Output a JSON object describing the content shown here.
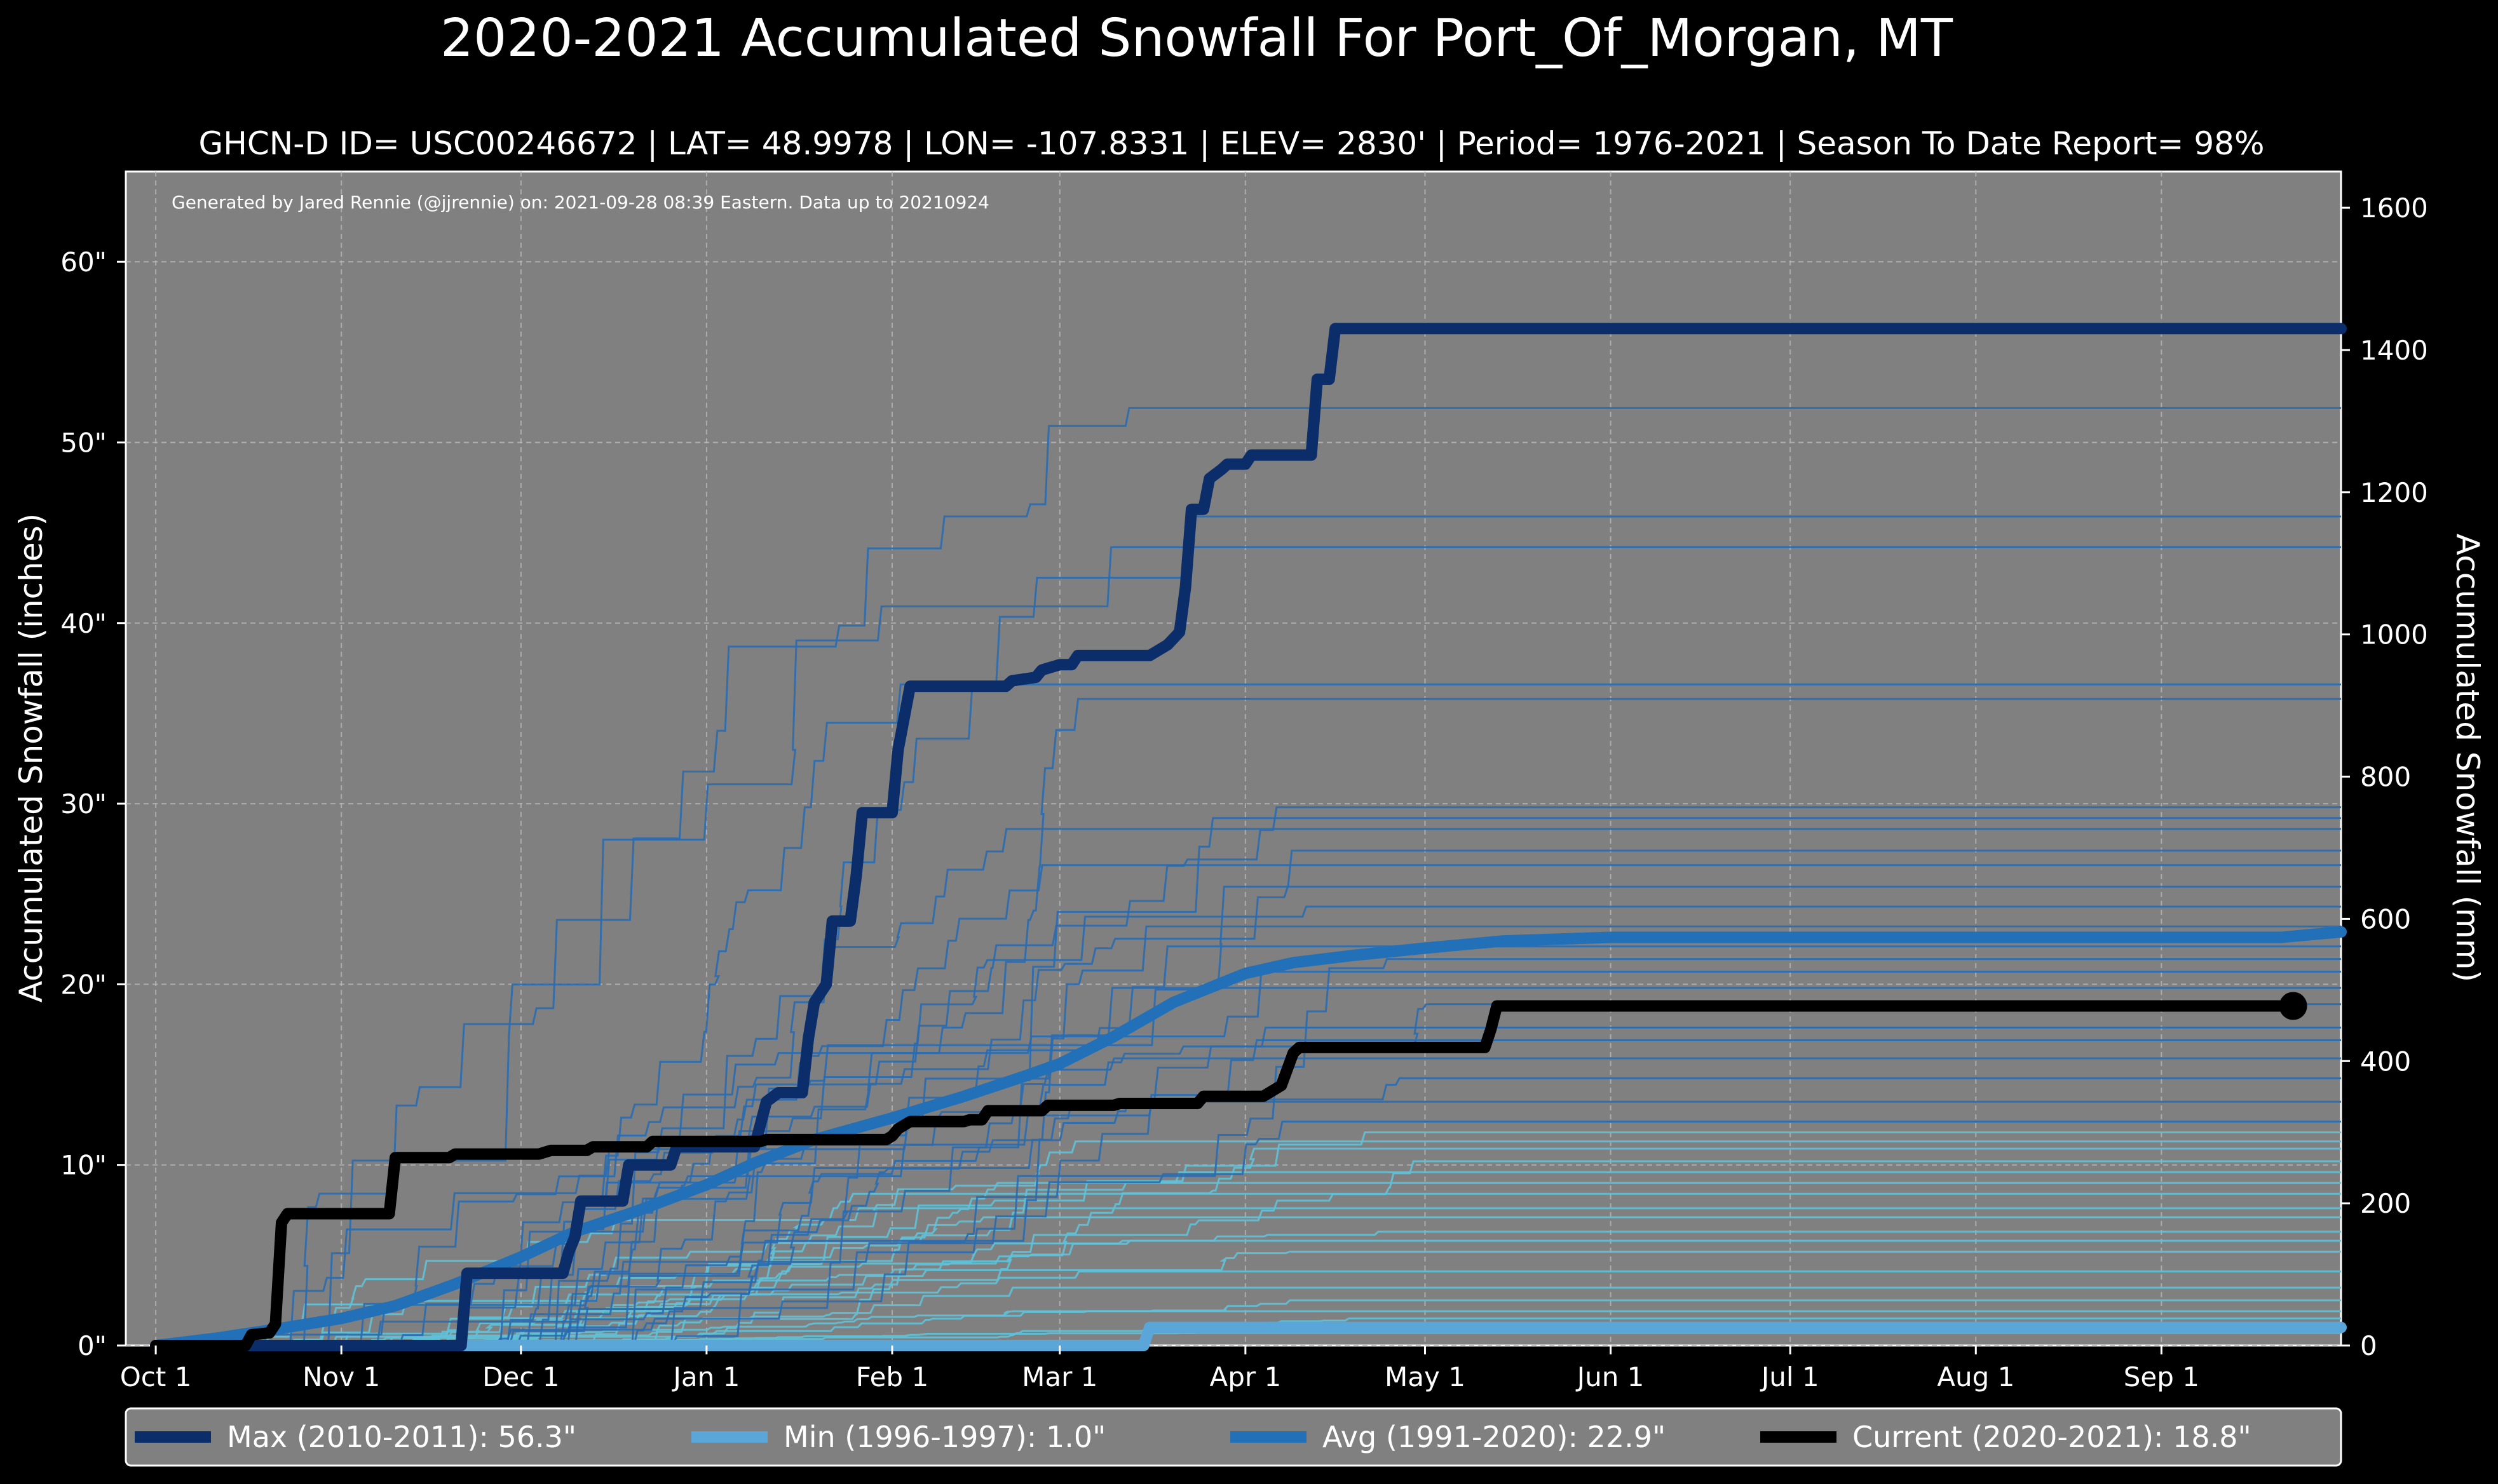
{
  "chart_data": {
    "type": "line",
    "title": "2020-2021 Accumulated Snowfall For Port_Of_Morgan, MT",
    "subtitle": "GHCN-D ID= USC00246672 | LAT= 48.9978 | LON= -107.8331 | ELEV= 2830' | Period= 1976-2021 | Season To Date Report= 98%",
    "annotation": "Generated by Jared Rennie (@jjrennie) on: 2021-09-28 08:39 Eastern. Data up to 20210924",
    "ylabel_left": "Accumulated Snowfall (inches)",
    "ylabel_right": "Accumulated Snowfall (mm)",
    "x_range_days": [
      -5,
      365
    ],
    "ylim_inches": [
      0,
      65
    ],
    "ylim_mm": [
      0,
      1651
    ],
    "grid": true,
    "x_ticks": [
      {
        "label": "Oct 1",
        "day": 0
      },
      {
        "label": "Nov 1",
        "day": 31
      },
      {
        "label": "Dec 1",
        "day": 61
      },
      {
        "label": "Jan 1",
        "day": 92
      },
      {
        "label": "Feb 1",
        "day": 123
      },
      {
        "label": "Mar 1",
        "day": 151
      },
      {
        "label": "Apr 1",
        "day": 182
      },
      {
        "label": "May 1",
        "day": 212
      },
      {
        "label": "Jun 1",
        "day": 243
      },
      {
        "label": "Jul 1",
        "day": 273
      },
      {
        "label": "Aug 1",
        "day": 304
      },
      {
        "label": "Sep 1",
        "day": 335
      }
    ],
    "y_ticks_left": [
      {
        "label": "0\"",
        "value": 0
      },
      {
        "label": "10\"",
        "value": 10
      },
      {
        "label": "20\"",
        "value": 20
      },
      {
        "label": "30\"",
        "value": 30
      },
      {
        "label": "40\"",
        "value": 40
      },
      {
        "label": "50\"",
        "value": 50
      },
      {
        "label": "60\"",
        "value": 60
      }
    ],
    "y_ticks_right": [
      {
        "label": "0",
        "value": 0
      },
      {
        "label": "200",
        "value": 200
      },
      {
        "label": "400",
        "value": 400
      },
      {
        "label": "600",
        "value": 600
      },
      {
        "label": "800",
        "value": 800
      },
      {
        "label": "1000",
        "value": 1000
      },
      {
        "label": "1200",
        "value": 1200
      },
      {
        "label": "1400",
        "value": 1400
      },
      {
        "label": "1600",
        "value": 1600
      }
    ],
    "series": [
      {
        "name": "Max (2010-2011)",
        "legend": "Max (2010-2011):   56.3\"",
        "color": "#0b2e6b",
        "points": [
          [
            0,
            0
          ],
          [
            51,
            0
          ],
          [
            52,
            4
          ],
          [
            68,
            4
          ],
          [
            69,
            5.2
          ],
          [
            70,
            6
          ],
          [
            71,
            8
          ],
          [
            78,
            8
          ],
          [
            79,
            10
          ],
          [
            86,
            10
          ],
          [
            87,
            11
          ],
          [
            94,
            11
          ],
          [
            100,
            11
          ],
          [
            102,
            13.5
          ],
          [
            104,
            14
          ],
          [
            108,
            14
          ],
          [
            109,
            17
          ],
          [
            110,
            19
          ],
          [
            112,
            20
          ],
          [
            113,
            23.5
          ],
          [
            116,
            23.5
          ],
          [
            117,
            26
          ],
          [
            118,
            29.5
          ],
          [
            123,
            29.5
          ],
          [
            124,
            33
          ],
          [
            126,
            36.5
          ],
          [
            142,
            36.5
          ],
          [
            143,
            36.8
          ],
          [
            147,
            37
          ],
          [
            148,
            37.4
          ],
          [
            151,
            37.7
          ],
          [
            153,
            37.7
          ],
          [
            154,
            38.2
          ],
          [
            166,
            38.2
          ],
          [
            167,
            38.4
          ],
          [
            169,
            38.8
          ],
          [
            171,
            39.5
          ],
          [
            172,
            42
          ],
          [
            173,
            46.3
          ],
          [
            175,
            46.3
          ],
          [
            176,
            48
          ],
          [
            178,
            48.5
          ],
          [
            179,
            48.8
          ],
          [
            182,
            48.8
          ],
          [
            183,
            49.3
          ],
          [
            193,
            49.3
          ],
          [
            194,
            53.5
          ],
          [
            196,
            53.5
          ],
          [
            197,
            56.3
          ],
          [
            365,
            56.3
          ]
        ]
      },
      {
        "name": "Min (1996-1997)",
        "legend": "Min (1996-1997):    1.0\"",
        "color": "#5aa6d8",
        "points": [
          [
            0,
            0
          ],
          [
            165,
            0
          ],
          [
            166,
            1
          ],
          [
            365,
            1
          ]
        ]
      },
      {
        "name": "Avg (1991-2020)",
        "legend": "Avg (1991-2020):   22.9\"",
        "color": "#2170b8",
        "points": [
          [
            0,
            0
          ],
          [
            10,
            0.4
          ],
          [
            20,
            0.9
          ],
          [
            31,
            1.5
          ],
          [
            40,
            2.2
          ],
          [
            50,
            3.4
          ],
          [
            61,
            4.9
          ],
          [
            70,
            6.3
          ],
          [
            80,
            7.4
          ],
          [
            92,
            8.9
          ],
          [
            100,
            10.1
          ],
          [
            110,
            11.4
          ],
          [
            123,
            12.6
          ],
          [
            135,
            13.8
          ],
          [
            145,
            14.9
          ],
          [
            151,
            15.6
          ],
          [
            160,
            17.1
          ],
          [
            170,
            19
          ],
          [
            182,
            20.6
          ],
          [
            190,
            21.2
          ],
          [
            200,
            21.6
          ],
          [
            212,
            22
          ],
          [
            225,
            22.4
          ],
          [
            243,
            22.6
          ],
          [
            273,
            22.6
          ],
          [
            304,
            22.6
          ],
          [
            335,
            22.6
          ],
          [
            355,
            22.6
          ],
          [
            365,
            22.9
          ]
        ]
      },
      {
        "name": "Current (2020-2021)",
        "legend": "Current (2020-2021):   18.8\"",
        "color": "#000000",
        "points": [
          [
            0,
            0
          ],
          [
            15,
            0
          ],
          [
            16,
            0.6
          ],
          [
            19,
            0.7
          ],
          [
            20,
            1.2
          ],
          [
            21,
            6.8
          ],
          [
            22,
            7.3
          ],
          [
            39,
            7.3
          ],
          [
            40,
            10.4
          ],
          [
            49,
            10.4
          ],
          [
            50,
            10.6
          ],
          [
            64,
            10.6
          ],
          [
            65,
            10.7
          ],
          [
            66,
            10.8
          ],
          [
            72,
            10.8
          ],
          [
            73,
            11
          ],
          [
            82,
            11
          ],
          [
            83,
            11.3
          ],
          [
            101,
            11.3
          ],
          [
            102,
            11.4
          ],
          [
            122,
            11.4
          ],
          [
            123,
            11.6
          ],
          [
            124,
            12
          ],
          [
            126,
            12.4
          ],
          [
            135,
            12.4
          ],
          [
            136,
            12.5
          ],
          [
            138,
            12.5
          ],
          [
            139,
            13
          ],
          [
            148,
            13
          ],
          [
            149,
            13.3
          ],
          [
            160,
            13.3
          ],
          [
            161,
            13.4
          ],
          [
            174,
            13.4
          ],
          [
            175,
            13.8
          ],
          [
            185,
            13.8
          ],
          [
            186,
            14
          ],
          [
            188,
            14.4
          ],
          [
            189,
            15.3
          ],
          [
            190,
            16.2
          ],
          [
            191,
            16.5
          ],
          [
            222,
            16.5
          ],
          [
            223,
            17.5
          ],
          [
            224,
            18.8
          ],
          [
            357,
            18.8
          ]
        ],
        "endpoint_marker": true
      }
    ],
    "historical_values": [
      0.7,
      1.5,
      1.9,
      2.5,
      3.2,
      4.1,
      5.2,
      5.8,
      6.3,
      7.1,
      7.6,
      8.4,
      9,
      9.6,
      10.2,
      10.9,
      11.3,
      11.8,
      12.4,
      13.5,
      14.8,
      15.9,
      16.9,
      17.6,
      18.9,
      19.8,
      20.7,
      21.4,
      22.1,
      23.2,
      24.3,
      25.4,
      26.6,
      27.4,
      28.6,
      29.2,
      29.8,
      35.8,
      36.6,
      44.2,
      45.9,
      51.9
    ]
  }
}
